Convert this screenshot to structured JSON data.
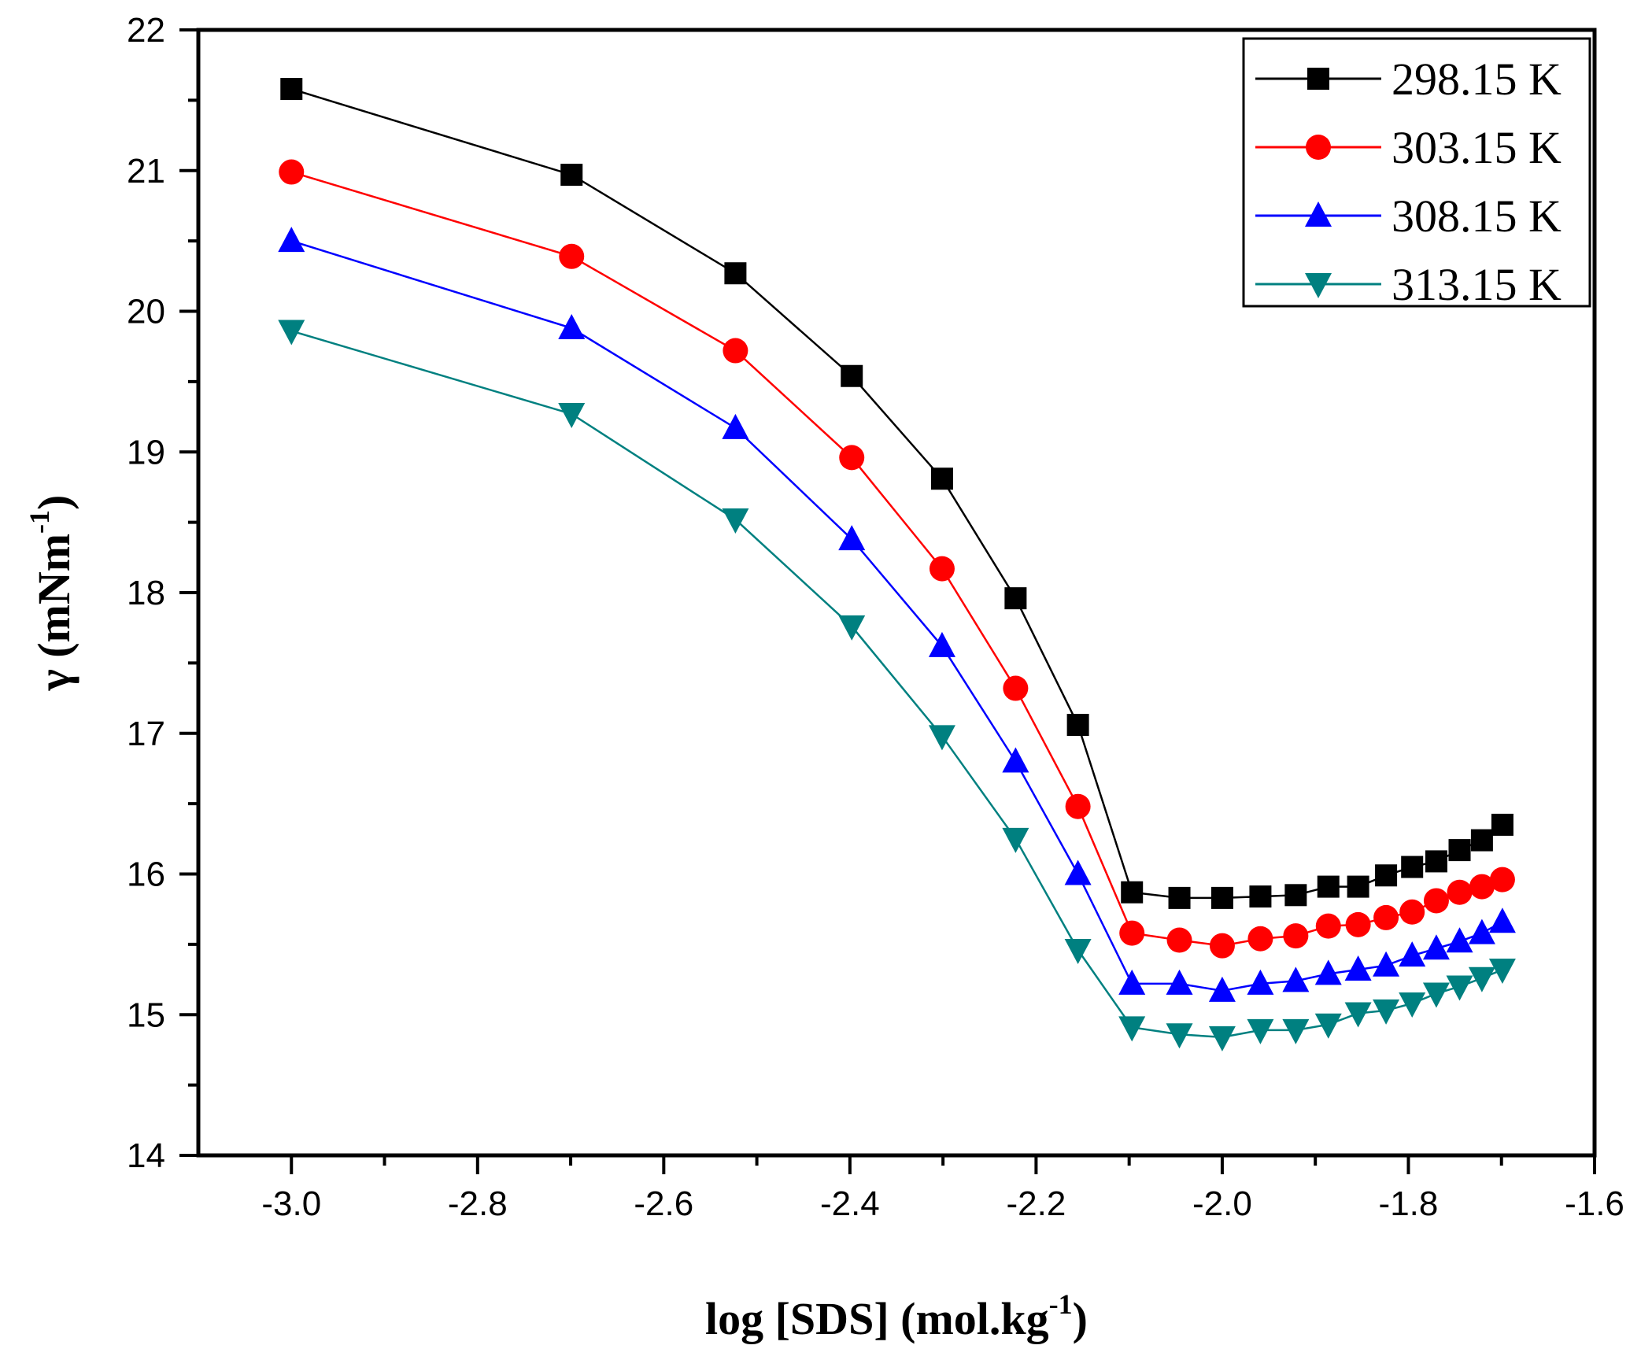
{
  "chart_data": {
    "type": "line",
    "title": "",
    "xlabel": {
      "main": "log [SDS] (mol.kg",
      "sup": "-1",
      "tail": ")"
    },
    "ylabel": {
      "main": "γ (mNm",
      "sup": "-1",
      "tail": ")"
    },
    "xlim": [
      -3.1,
      -1.6
    ],
    "ylim": [
      14,
      22
    ],
    "xticks": [
      -3.0,
      -2.8,
      -2.6,
      -2.4,
      -2.2,
      -2.0,
      -1.8,
      -1.6
    ],
    "xtick_labels": [
      "-3.0",
      "-2.8",
      "-2.6",
      "-2.4",
      "-2.2",
      "-2.0",
      "-1.8",
      "-1.6"
    ],
    "yticks": [
      14,
      15,
      16,
      17,
      18,
      19,
      20,
      21,
      22
    ],
    "ytick_labels": [
      "14",
      "15",
      "16",
      "17",
      "18",
      "19",
      "20",
      "21",
      "22"
    ],
    "grid": false,
    "legend_position": "top-right",
    "x": [
      -3.0,
      -2.699,
      -2.523,
      -2.398,
      -2.301,
      -2.222,
      -2.155,
      -2.097,
      -2.046,
      -2.0,
      -1.959,
      -1.921,
      -1.886,
      -1.854,
      -1.824,
      -1.796,
      -1.77,
      -1.745,
      -1.721,
      -1.699
    ],
    "series": [
      {
        "name": "298.15 K",
        "color": "#000000",
        "marker": "square",
        "values": [
          21.58,
          20.97,
          20.27,
          19.54,
          18.81,
          17.96,
          17.06,
          15.87,
          15.83,
          15.83,
          15.84,
          15.85,
          15.91,
          15.91,
          15.99,
          16.05,
          16.09,
          16.17,
          16.24,
          16.35
        ]
      },
      {
        "name": "303.15 K",
        "color": "#ff0000",
        "marker": "circle",
        "values": [
          20.99,
          20.39,
          19.72,
          18.96,
          18.17,
          17.32,
          16.48,
          15.58,
          15.53,
          15.49,
          15.54,
          15.56,
          15.63,
          15.64,
          15.69,
          15.73,
          15.81,
          15.87,
          15.91,
          15.96
        ]
      },
      {
        "name": "308.15 K",
        "color": "#0000ff",
        "marker": "triangle-up",
        "values": [
          20.5,
          19.88,
          19.17,
          18.38,
          17.62,
          16.8,
          16.0,
          15.22,
          15.22,
          15.17,
          15.22,
          15.24,
          15.29,
          15.32,
          15.35,
          15.42,
          15.47,
          15.52,
          15.58,
          15.66
        ]
      },
      {
        "name": "313.15 K",
        "color": "#008080",
        "marker": "triangle-down",
        "values": [
          19.86,
          19.27,
          18.52,
          17.76,
          16.98,
          16.25,
          15.46,
          14.91,
          14.86,
          14.84,
          14.89,
          14.89,
          14.93,
          15.01,
          15.03,
          15.08,
          15.15,
          15.2,
          15.26,
          15.32
        ]
      }
    ]
  }
}
